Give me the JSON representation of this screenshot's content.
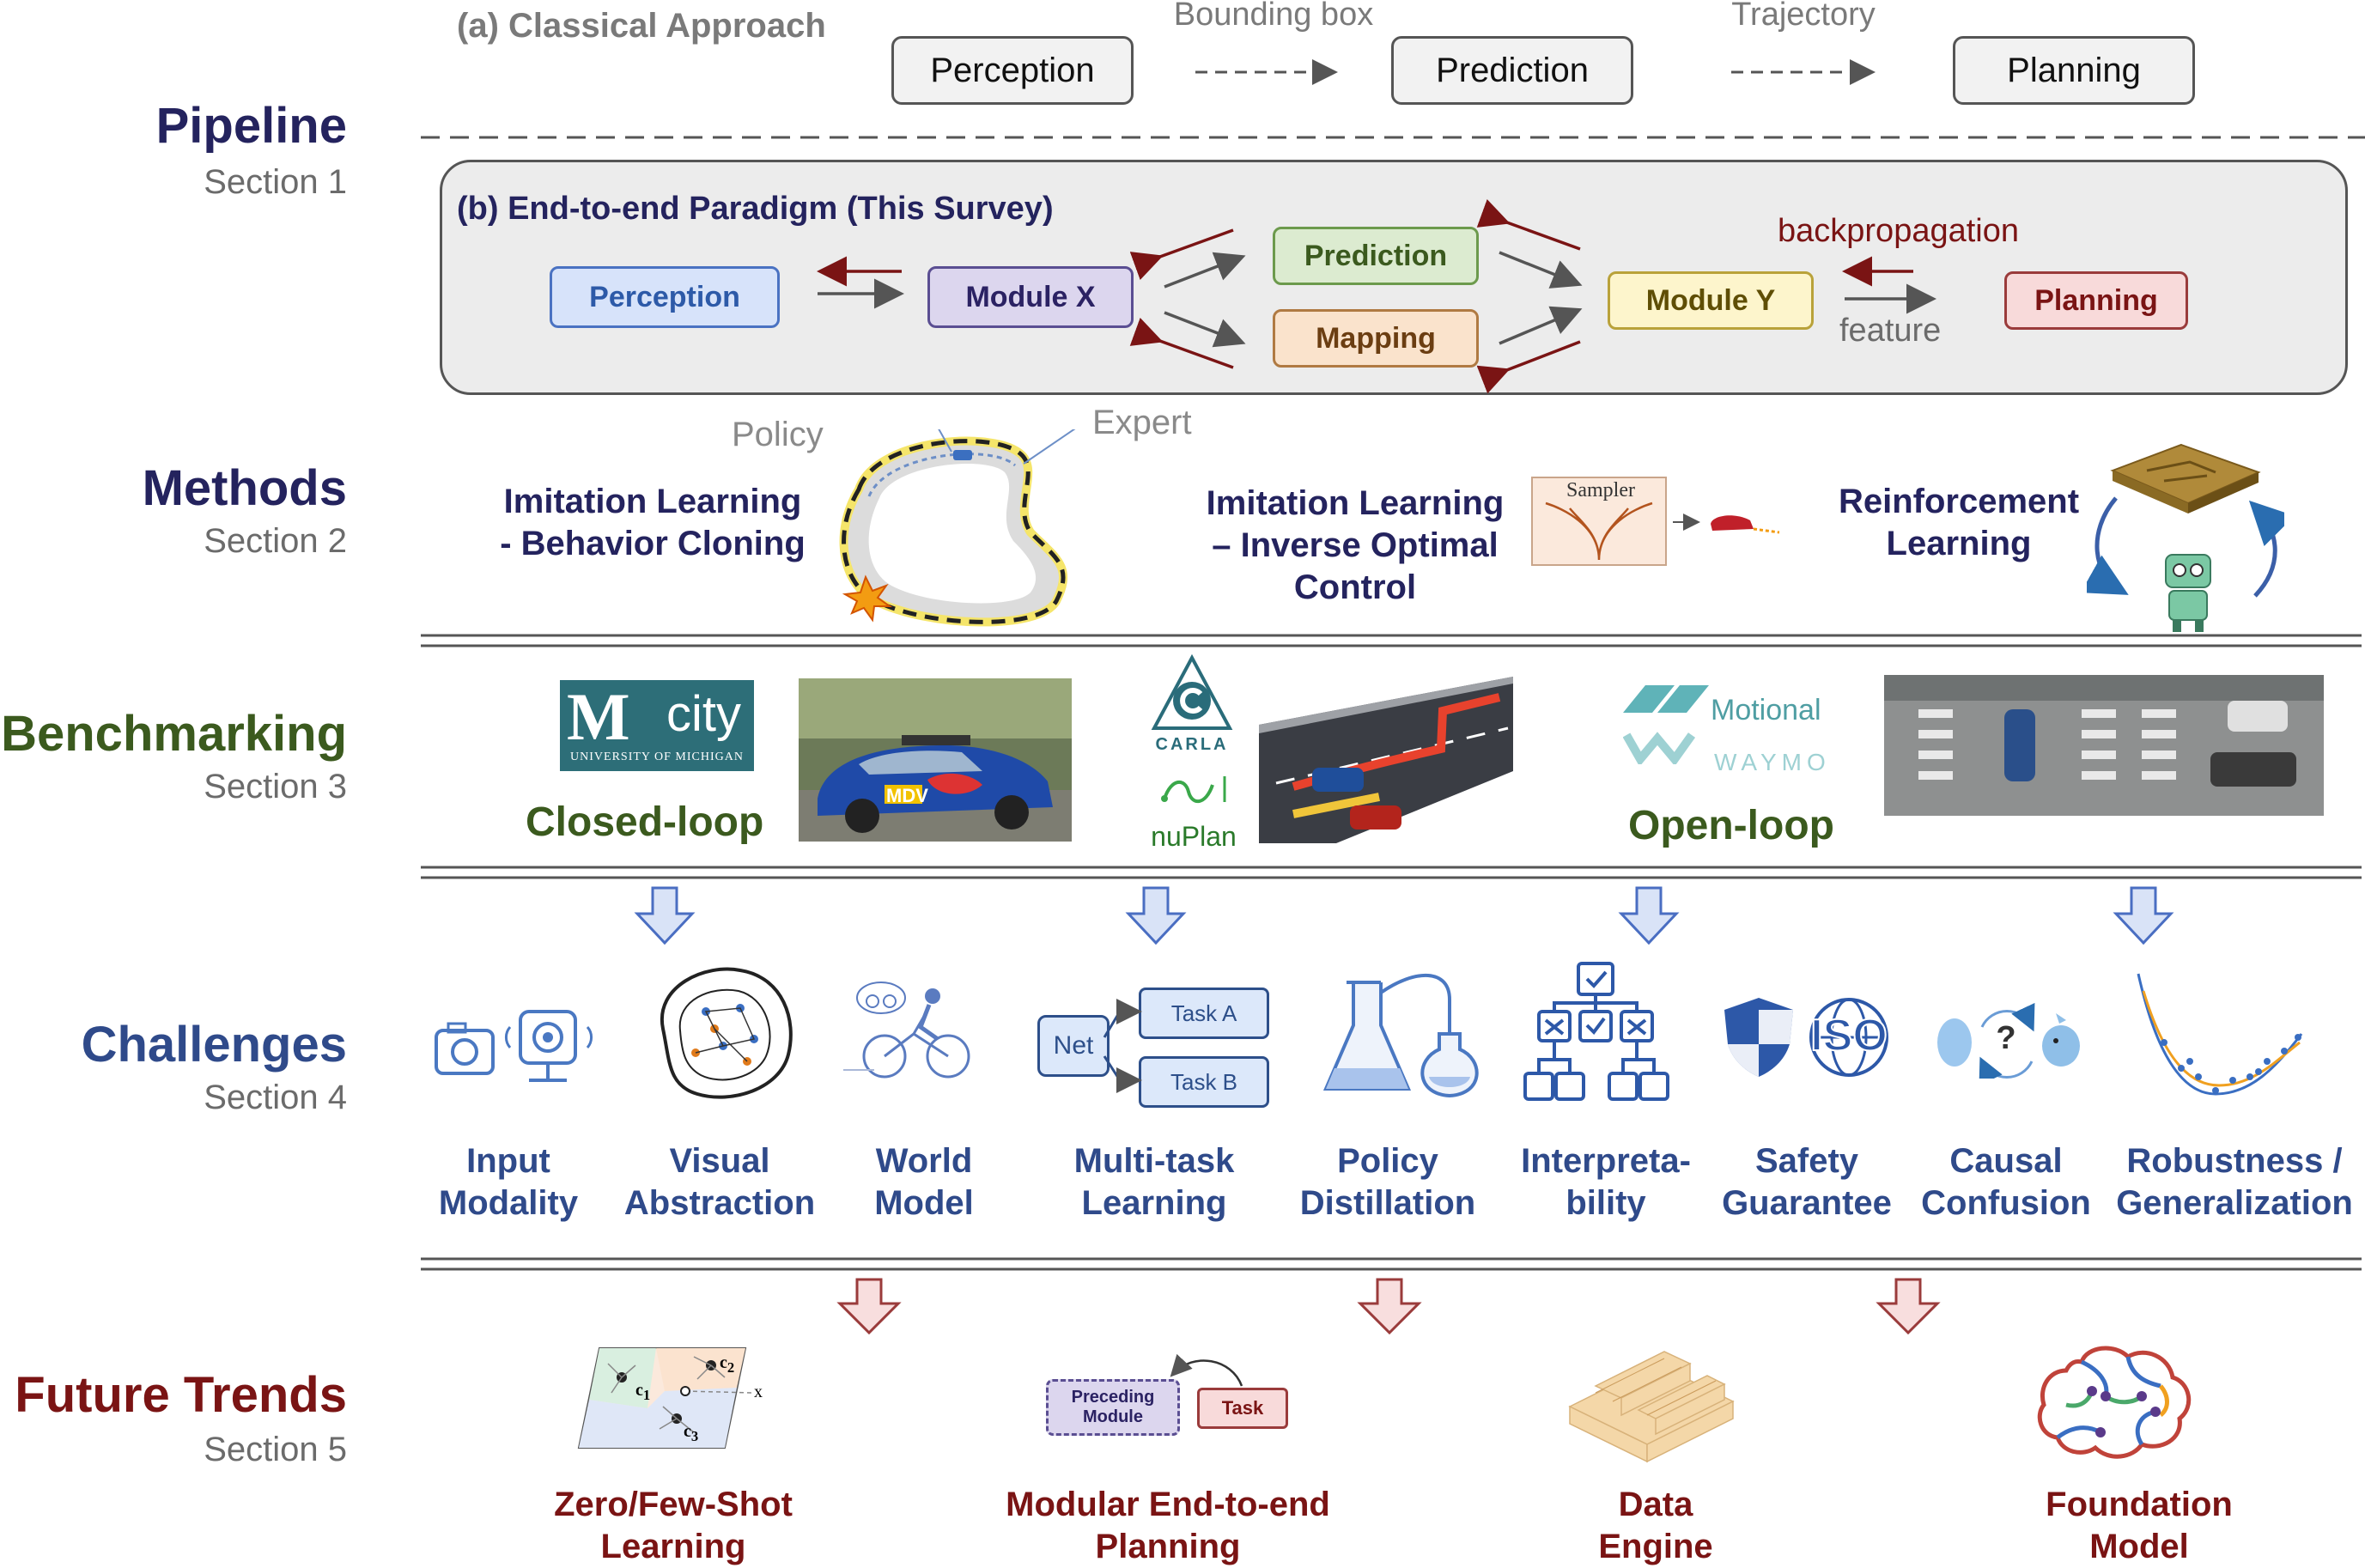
{
  "sections": {
    "pipeline": {
      "title": "Pipeline",
      "subtitle": "Section 1",
      "color": "#24235e"
    },
    "methods": {
      "title": "Methods",
      "subtitle": "Section 2",
      "color": "#24235e"
    },
    "benchmarking": {
      "title": "Benchmarking",
      "subtitle": "Section 3",
      "color": "#3b5a1e"
    },
    "challenges": {
      "title": "Challenges",
      "subtitle": "Section 4",
      "color": "#2f4a8a"
    },
    "future": {
      "title": "Future Trends",
      "subtitle": "Section 5",
      "color": "#7a1414"
    }
  },
  "pipeline": {
    "classical": {
      "label": "(a) Classical Approach",
      "boxes": [
        "Perception",
        "Prediction",
        "Planning"
      ],
      "edges": [
        "Bounding box",
        "Trajectory"
      ]
    },
    "end_to_end": {
      "label": "(b) End-to-end Paradigm (This Survey)",
      "modules": {
        "perception": "Perception",
        "module_x": "Module X",
        "prediction": "Prediction",
        "mapping": "Mapping",
        "module_y": "Module Y",
        "planning": "Planning"
      },
      "backprop_label": "backpropagation",
      "feature_label": "feature"
    }
  },
  "methods": {
    "bc": {
      "title": "Imitation Learning\n- Behavior Cloning",
      "policy": "Policy",
      "expert": "Expert"
    },
    "ioc": {
      "title": "Imitation Learning\n– Inverse Optimal\nControl",
      "sampler": "Sampler"
    },
    "rl": {
      "title": "Reinforcement\nLearning"
    }
  },
  "benchmarking": {
    "mcity": {
      "letter": "M",
      "word": "city",
      "university": "UNIVERSITY OF MICHIGAN"
    },
    "closed_loop": "Closed-loop",
    "open_loop": "Open-loop",
    "car_plate": "MDV",
    "carla": "CARLA",
    "nuplan": "nuPlan",
    "motional": "Motional",
    "waymo": "WAYMO"
  },
  "challenges": {
    "items": [
      "Input\nModality",
      "Visual\nAbstraction",
      "World\nModel",
      "Multi-task\nLearning",
      "Policy\nDistillation",
      "Interpreta-\nbility",
      "Safety\nGuarantee",
      "Causal\nConfusion",
      "Robustness /\nGeneralization"
    ],
    "net_label": "Net",
    "task_a": "Task A",
    "task_b": "Task B",
    "iso": "ISO",
    "question": "?"
  },
  "future": {
    "items": [
      "Zero/Few-Shot\nLearning",
      "Modular End-to-end\nPlanning",
      "Data\nEngine",
      "Foundation\nModel"
    ],
    "preceding": "Preceding\nModule",
    "task": "Task",
    "c1": "c",
    "c2": "c",
    "c3": "c",
    "sub1": "1",
    "sub2": "2",
    "sub3": "3",
    "x_label": "x"
  }
}
